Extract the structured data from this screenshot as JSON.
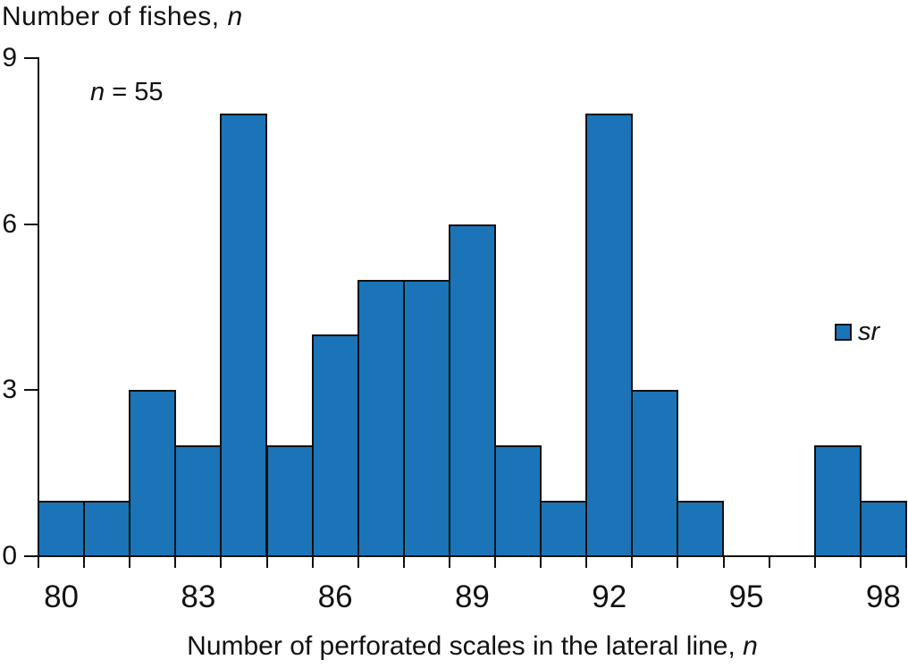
{
  "chart_data": {
    "type": "bar",
    "title": "Number of fishes, n",
    "title_parts": {
      "prefix": "Number of fishes, ",
      "italic": "n"
    },
    "annotation": {
      "text": "n = 55",
      "italic": "n",
      "rest": " = 55"
    },
    "xlabel": "Number of perforated scales in the lateral line, n",
    "xlabel_parts": {
      "prefix": "Number of perforated scales in the lateral line, ",
      "italic": "n"
    },
    "x": [
      80,
      81,
      82,
      83,
      84,
      85,
      86,
      87,
      88,
      89,
      90,
      91,
      92,
      93,
      94,
      95,
      96,
      97,
      98
    ],
    "values": [
      1,
      1,
      3,
      2,
      8,
      2,
      4,
      5,
      5,
      6,
      2,
      1,
      8,
      3,
      1,
      0,
      0,
      2,
      1
    ],
    "total_n": 55,
    "x_tick_labels": [
      "80",
      "83",
      "86",
      "89",
      "92",
      "95",
      "98"
    ],
    "x_tick_label_indices": [
      0,
      3,
      6,
      9,
      12,
      15,
      18
    ],
    "y_ticks": [
      0,
      3,
      6,
      9
    ],
    "ylim": [
      0,
      9
    ],
    "grid": "off",
    "legend": {
      "label": "sr",
      "position": "right-middle"
    },
    "colors": {
      "bar_fill": "#1b74b8",
      "bar_border": "#101010",
      "axis": "#111111",
      "text": "#111111"
    }
  }
}
